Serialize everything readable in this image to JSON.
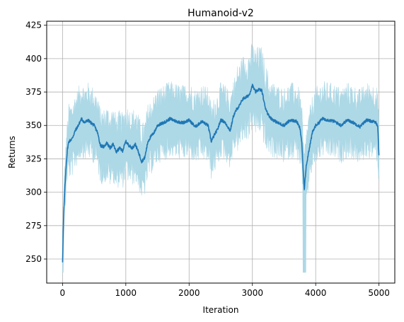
{
  "chart_data": {
    "type": "line",
    "title": "Humanoid-v2",
    "xlabel": "Iteration",
    "ylabel": "Returns",
    "xlim": [
      -250,
      5250
    ],
    "ylim": [
      232,
      428
    ],
    "xticks": [
      0,
      1000,
      2000,
      3000,
      4000,
      5000
    ],
    "yticks": [
      250,
      275,
      300,
      325,
      350,
      375,
      400,
      425
    ],
    "grid": true,
    "colors": {
      "mean": "#1f77b4",
      "band": "#add8e6",
      "grid": "#b0b0b0"
    },
    "series": [
      {
        "kind": "mean-line",
        "x": [
          0,
          10,
          20,
          40,
          60,
          80,
          100,
          150,
          200,
          250,
          300,
          350,
          400,
          450,
          500,
          550,
          600,
          650,
          700,
          750,
          800,
          850,
          900,
          950,
          1000,
          1050,
          1100,
          1150,
          1200,
          1250,
          1300,
          1350,
          1400,
          1450,
          1500,
          1600,
          1700,
          1800,
          1900,
          2000,
          2100,
          2200,
          2300,
          2350,
          2400,
          2450,
          2500,
          2550,
          2600,
          2650,
          2700,
          2750,
          2800,
          2850,
          2900,
          2950,
          3000,
          3050,
          3100,
          3150,
          3200,
          3250,
          3300,
          3400,
          3500,
          3600,
          3700,
          3750,
          3780,
          3800,
          3820,
          3850,
          3900,
          3950,
          4000,
          4050,
          4100,
          4200,
          4300,
          4400,
          4500,
          4600,
          4700,
          4800,
          4900,
          4950,
          4980,
          5000
        ],
        "y": [
          248,
          270,
          285,
          305,
          322,
          333,
          338,
          340,
          346,
          350,
          355,
          352,
          354,
          352,
          350,
          345,
          335,
          334,
          337,
          333,
          336,
          330,
          333,
          331,
          338,
          335,
          333,
          336,
          330,
          323,
          326,
          338,
          342,
          345,
          350,
          352,
          355,
          353,
          352,
          354,
          349,
          353,
          350,
          338,
          343,
          347,
          354,
          353,
          350,
          346,
          357,
          362,
          365,
          370,
          371,
          373,
          380,
          375,
          377,
          376,
          364,
          358,
          355,
          352,
          350,
          354,
          353,
          348,
          338,
          318,
          302,
          320,
          333,
          345,
          350,
          352,
          355,
          354,
          353,
          350,
          354,
          352,
          349,
          354,
          353,
          352,
          350,
          328
        ]
      }
    ]
  }
}
